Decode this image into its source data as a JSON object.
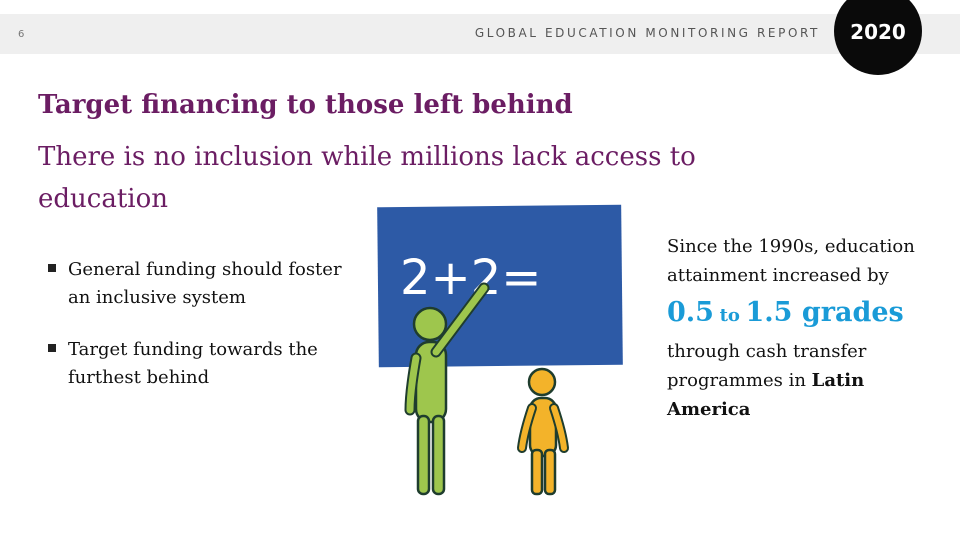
{
  "header": {
    "page_number": "6",
    "report_title": "GLOBAL EDUCATION MONITORING REPORT",
    "year": "2020"
  },
  "title": "Target financing to those left behind",
  "subtitle": "There is no inclusion while millions lack access to education",
  "bullets": [
    {
      "text": "General funding should foster an inclusive system"
    },
    {
      "text": "Target funding towards the furthest behind"
    }
  ],
  "illustration": {
    "equation": "2+2=",
    "board_color": "#2d5aa6",
    "adult_color": "#9ec64d",
    "child_color": "#f3b32a"
  },
  "stats": {
    "intro": "Since the 1990s, education attainment increased by",
    "value_low": "0.5",
    "connector": "to",
    "value_high": "1.5 grades",
    "outro_prefix": "through cash transfer programmes in",
    "region": "Latin America",
    "highlight_color": "#1a9bd7"
  },
  "colors": {
    "title": "#6b1d63",
    "header_bar": "#efefef",
    "badge": "#0a0a0a"
  }
}
